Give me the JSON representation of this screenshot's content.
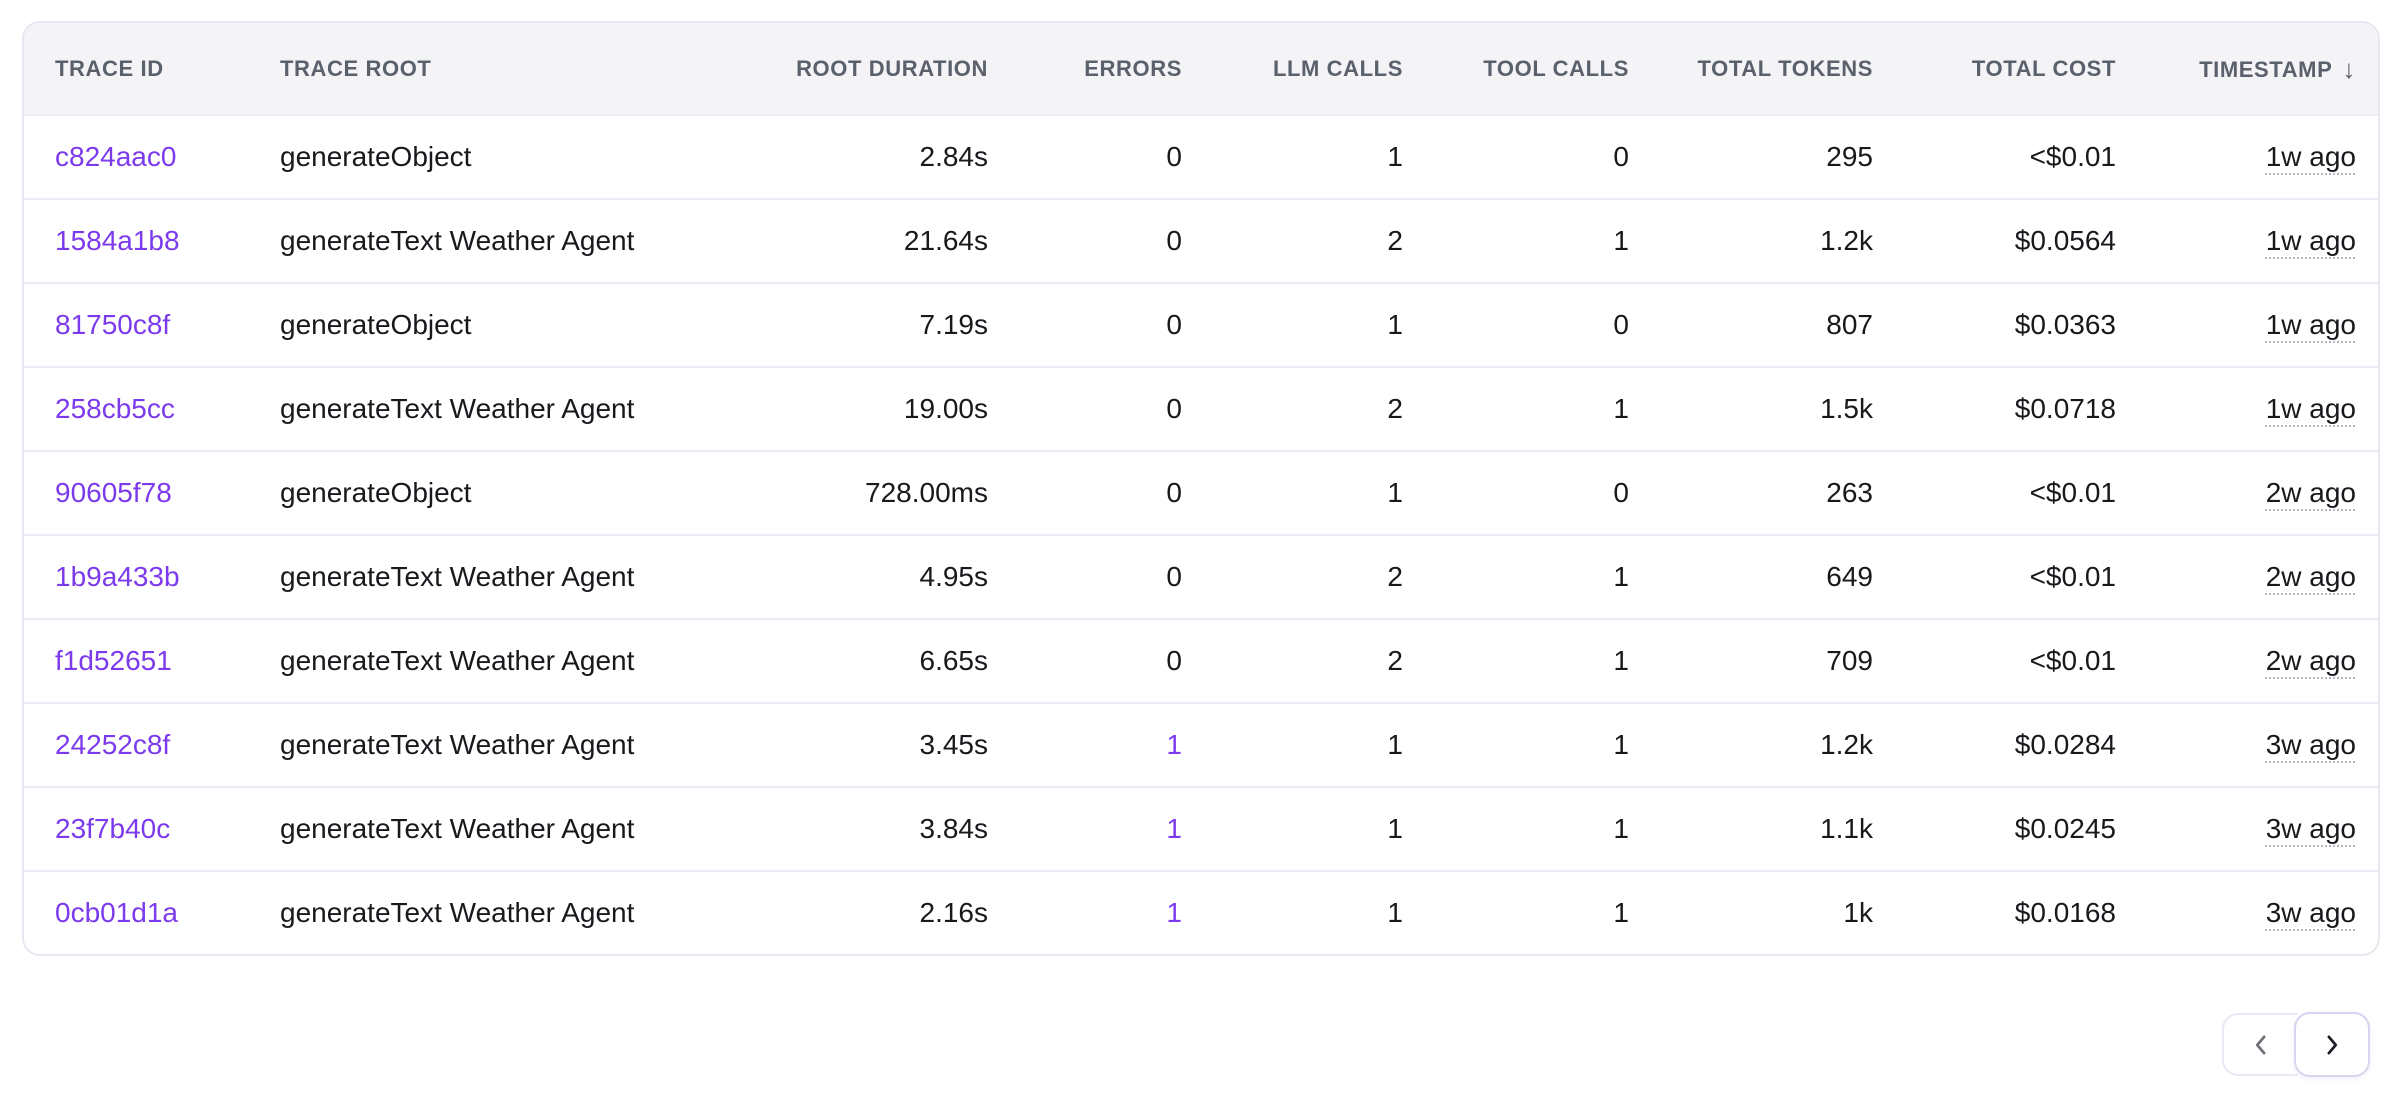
{
  "colors": {
    "accent": "#7c3aed",
    "header_text": "#5b616c",
    "body_text": "#18181d",
    "header_bg": "#f4f4f6",
    "border": "#e7e7f0",
    "row_divider": "#ebebf3",
    "muted_chevron": "#70707b",
    "dark_chevron": "#1e1e26"
  },
  "table": {
    "columns": [
      {
        "key": "trace_id",
        "label": "TRACE ID",
        "align": "left",
        "type": "link"
      },
      {
        "key": "trace_root",
        "label": "TRACE ROOT",
        "align": "left",
        "type": "text"
      },
      {
        "key": "root_duration",
        "label": "ROOT DURATION",
        "align": "right",
        "type": "text"
      },
      {
        "key": "errors",
        "label": "ERRORS",
        "align": "right",
        "type": "errors"
      },
      {
        "key": "llm_calls",
        "label": "LLM CALLS",
        "align": "right",
        "type": "text"
      },
      {
        "key": "tool_calls",
        "label": "TOOL CALLS",
        "align": "right",
        "type": "text"
      },
      {
        "key": "total_tokens",
        "label": "TOTAL TOKENS",
        "align": "right",
        "type": "text"
      },
      {
        "key": "total_cost",
        "label": "TOTAL COST",
        "align": "right",
        "type": "text"
      },
      {
        "key": "timestamp",
        "label": "TIMESTAMP",
        "align": "right",
        "type": "timestamp",
        "sort": "desc",
        "sort_icon": "arrow-down-icon",
        "sort_glyph": "↓"
      }
    ],
    "rows": [
      {
        "trace_id": "c824aac0",
        "trace_root": "generateObject",
        "root_duration": "2.84s",
        "errors": "0",
        "errors_highlight": false,
        "llm_calls": "1",
        "tool_calls": "0",
        "total_tokens": "295",
        "total_cost": "<$0.01",
        "timestamp": "1w ago"
      },
      {
        "trace_id": "1584a1b8",
        "trace_root": "generateText Weather Agent",
        "root_duration": "21.64s",
        "errors": "0",
        "errors_highlight": false,
        "llm_calls": "2",
        "tool_calls": "1",
        "total_tokens": "1.2k",
        "total_cost": "$0.0564",
        "timestamp": "1w ago"
      },
      {
        "trace_id": "81750c8f",
        "trace_root": "generateObject",
        "root_duration": "7.19s",
        "errors": "0",
        "errors_highlight": false,
        "llm_calls": "1",
        "tool_calls": "0",
        "total_tokens": "807",
        "total_cost": "$0.0363",
        "timestamp": "1w ago"
      },
      {
        "trace_id": "258cb5cc",
        "trace_root": "generateText Weather Agent",
        "root_duration": "19.00s",
        "errors": "0",
        "errors_highlight": false,
        "llm_calls": "2",
        "tool_calls": "1",
        "total_tokens": "1.5k",
        "total_cost": "$0.0718",
        "timestamp": "1w ago"
      },
      {
        "trace_id": "90605f78",
        "trace_root": "generateObject",
        "root_duration": "728.00ms",
        "errors": "0",
        "errors_highlight": false,
        "llm_calls": "1",
        "tool_calls": "0",
        "total_tokens": "263",
        "total_cost": "<$0.01",
        "timestamp": "2w ago"
      },
      {
        "trace_id": "1b9a433b",
        "trace_root": "generateText Weather Agent",
        "root_duration": "4.95s",
        "errors": "0",
        "errors_highlight": false,
        "llm_calls": "2",
        "tool_calls": "1",
        "total_tokens": "649",
        "total_cost": "<$0.01",
        "timestamp": "2w ago"
      },
      {
        "trace_id": "f1d52651",
        "trace_root": "generateText Weather Agent",
        "root_duration": "6.65s",
        "errors": "0",
        "errors_highlight": false,
        "llm_calls": "2",
        "tool_calls": "1",
        "total_tokens": "709",
        "total_cost": "<$0.01",
        "timestamp": "2w ago"
      },
      {
        "trace_id": "24252c8f",
        "trace_root": "generateText Weather Agent",
        "root_duration": "3.45s",
        "errors": "1",
        "errors_highlight": true,
        "llm_calls": "1",
        "tool_calls": "1",
        "total_tokens": "1.2k",
        "total_cost": "$0.0284",
        "timestamp": "3w ago"
      },
      {
        "trace_id": "23f7b40c",
        "trace_root": "generateText Weather Agent",
        "root_duration": "3.84s",
        "errors": "1",
        "errors_highlight": true,
        "llm_calls": "1",
        "tool_calls": "1",
        "total_tokens": "1.1k",
        "total_cost": "$0.0245",
        "timestamp": "3w ago"
      },
      {
        "trace_id": "0cb01d1a",
        "trace_root": "generateText Weather Agent",
        "root_duration": "2.16s",
        "errors": "1",
        "errors_highlight": true,
        "llm_calls": "1",
        "tool_calls": "1",
        "total_tokens": "1k",
        "total_cost": "$0.0168",
        "timestamp": "3w ago"
      }
    ]
  },
  "pagination": {
    "prev_icon": "chevron-left-icon",
    "next_icon": "chevron-right-icon",
    "prev_enabled": false,
    "next_enabled": true
  }
}
